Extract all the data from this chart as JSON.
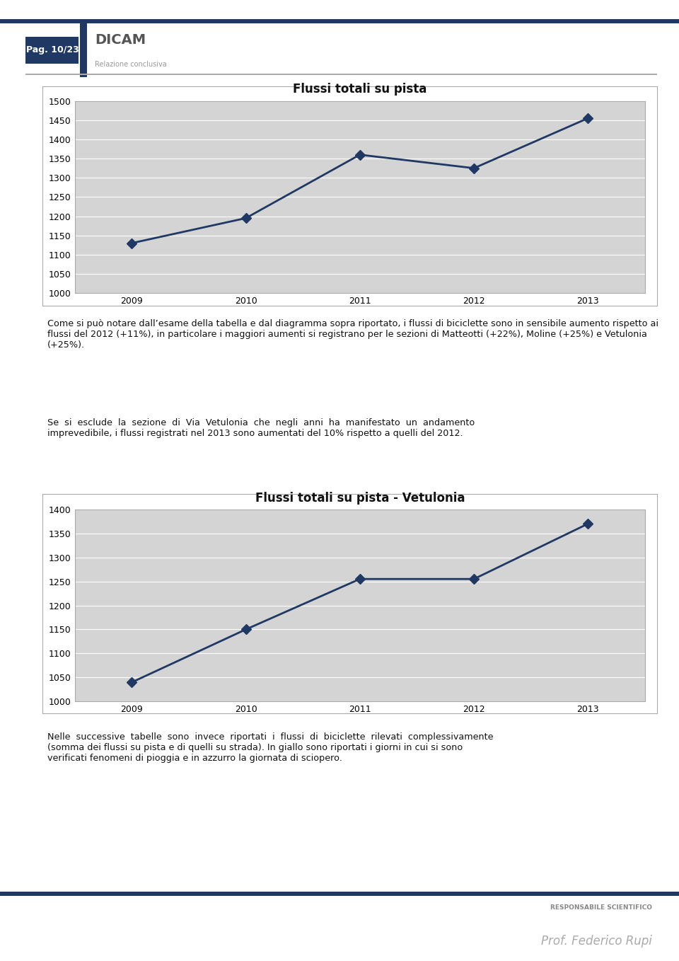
{
  "page_bg": "#ffffff",
  "header_bar_color": "#1f3864",
  "page_label": "Pag. 10/23",
  "title_dicam": "DICAM",
  "subtitle_relazione": "Relazione conclusiva",
  "chart1_title": "Flussi totali su pista",
  "chart1_years": [
    2009,
    2010,
    2011,
    2012,
    2013
  ],
  "chart1_values": [
    1130,
    1195,
    1360,
    1325,
    1455
  ],
  "chart1_ylim": [
    1000,
    1500
  ],
  "chart1_yticks": [
    1000,
    1050,
    1100,
    1150,
    1200,
    1250,
    1300,
    1350,
    1400,
    1450,
    1500
  ],
  "chart2_title": "Flussi totali su pista - Vetulonia",
  "chart2_years": [
    2009,
    2010,
    2011,
    2012,
    2013
  ],
  "chart2_values": [
    1040,
    1150,
    1255,
    1255,
    1370
  ],
  "chart2_ylim": [
    1000,
    1400
  ],
  "chart2_yticks": [
    1000,
    1050,
    1100,
    1150,
    1200,
    1250,
    1300,
    1350,
    1400
  ],
  "line_color": "#1f3864",
  "line_width": 2.0,
  "marker_style": "D",
  "marker_size": 7,
  "chart_bg": "#d4d4d4",
  "grid_color": "#ffffff",
  "text1": "Come si può notare dall’esame della tabella e dal diagramma sopra riportato, i flussi di biciclette sono in sensibile aumento rispetto ai flussi del 2012 (+11%), in particolare i maggiori aumenti si registrano per le sezioni di Matteotti (+22%), Moline (+25%) e Vetulonia (+25%).",
  "text2_line1": "Se  si  esclude  la  sezione  di  Via  Vetulonia  che  negli  anni  ha  manifestato  un  andamento",
  "text2_line2": "imprevedibile, i flussi registrati nel 2013 sono aumentati del 10% rispetto a quelli del 2012.",
  "text3": "Nelle  successive  tabelle  sono  invece  riportati  i  flussi  di  biciclette  rilevati  complessivamente\n(somma dei flussi su pista e di quelli su strada). In giallo sono riportati i giorni in cui si sono\nverificati fenomeni di pioggia e in azzurro la giornata di sciopero.",
  "footer_label": "RESPONSABILE SCIENTIFICO",
  "footer_name": "Prof. Federico Rupi"
}
